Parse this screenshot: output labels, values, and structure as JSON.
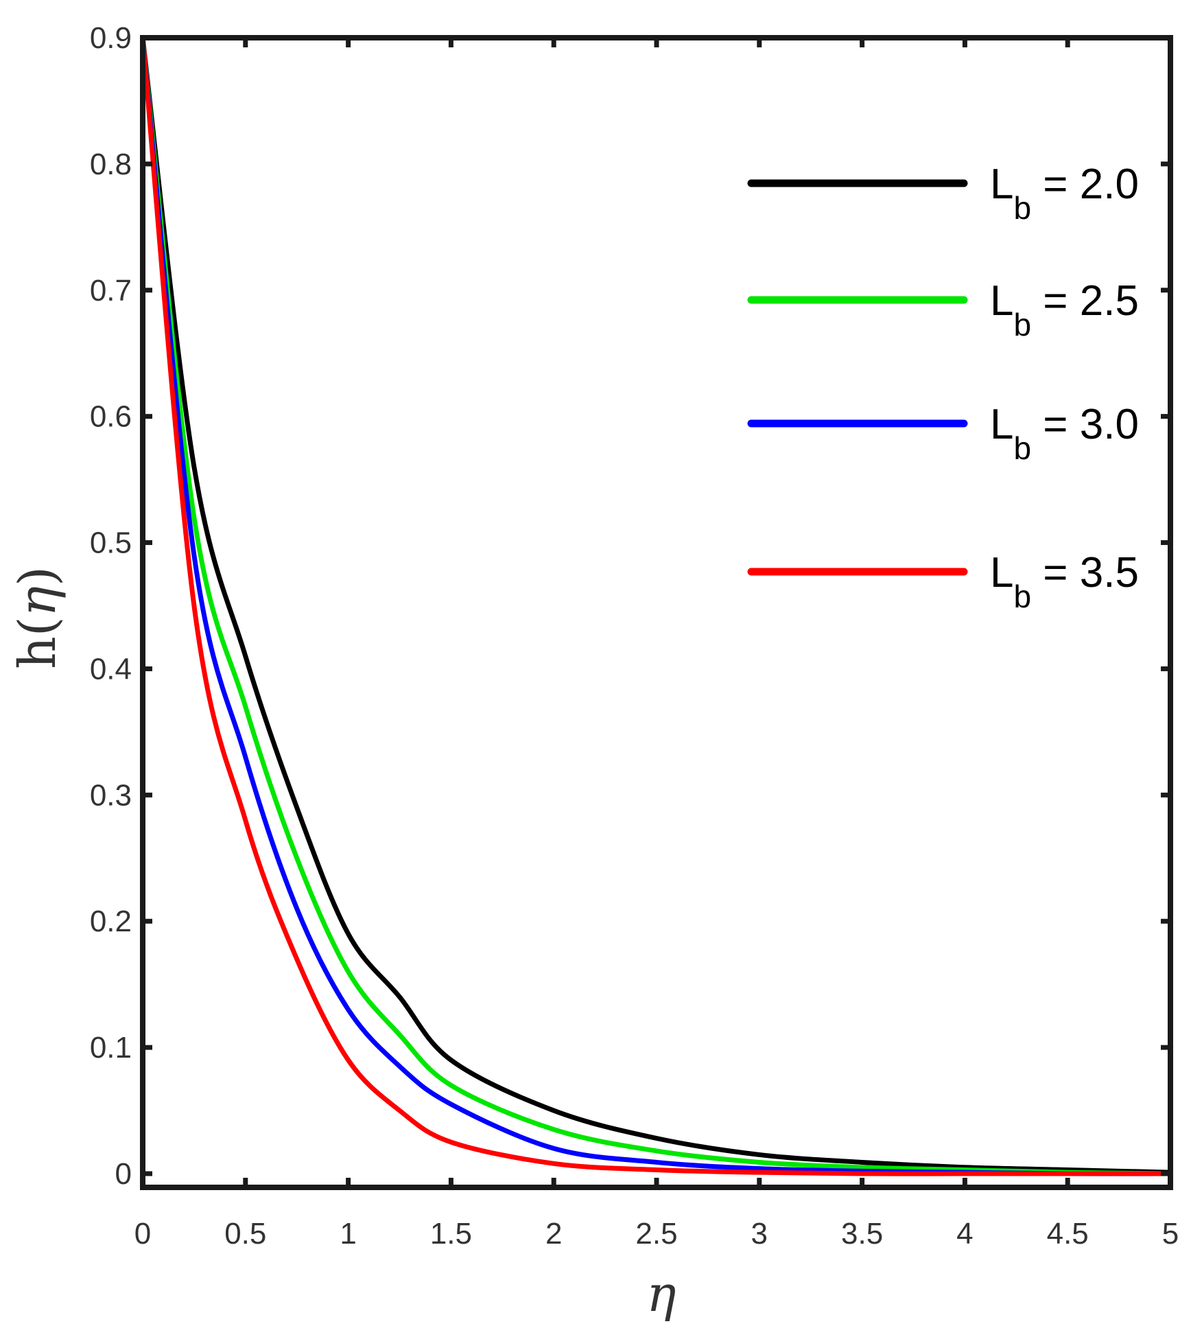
{
  "chart_data": {
    "type": "line",
    "xlabel": "η",
    "ylabel_prefix": "h(",
    "ylabel_var": "η",
    "ylabel_suffix": ")",
    "xlim": [
      0,
      5
    ],
    "ylim": [
      0,
      0.9
    ],
    "x_ticks": [
      0,
      0.5,
      1,
      1.5,
      2,
      2.5,
      3,
      3.5,
      4,
      4.5,
      5
    ],
    "x_tick_labels": [
      "0",
      "0.5",
      "1",
      "1.5",
      "2",
      "2.5",
      "3",
      "3.5",
      "4",
      "4.5",
      "5"
    ],
    "y_ticks": [
      0,
      0.1,
      0.2,
      0.3,
      0.4,
      0.5,
      0.6,
      0.7,
      0.8,
      0.9
    ],
    "y_tick_labels": [
      "0",
      "0.1",
      "0.2",
      "0.3",
      "0.4",
      "0.5",
      "0.6",
      "0.7",
      "0.8",
      "0.9"
    ],
    "grid": false,
    "legend_position": "top-right",
    "series": [
      {
        "name": "Lb = 2.0",
        "label_main": "L",
        "label_sub": "b",
        "label_rest": " = 2.0",
        "color": "#000000",
        "x": [
          0,
          0.25,
          0.5,
          0.75,
          1,
          1.25,
          1.5,
          2,
          2.5,
          3,
          3.5,
          4,
          4.5,
          5
        ],
        "y": [
          0.9,
          0.56,
          0.41,
          0.29,
          0.19,
          0.14,
          0.09,
          0.05,
          0.028,
          0.015,
          0.009,
          0.005,
          0.003,
          0.001
        ]
      },
      {
        "name": "Lb = 2.5",
        "label_main": "L",
        "label_sub": "b",
        "label_rest": " = 2.5",
        "color": "#00e600",
        "x": [
          0,
          0.25,
          0.5,
          0.75,
          1,
          1.25,
          1.5,
          2,
          2.5,
          3,
          3.5,
          4,
          4.5,
          5
        ],
        "y": [
          0.9,
          0.52,
          0.37,
          0.25,
          0.16,
          0.11,
          0.07,
          0.035,
          0.018,
          0.009,
          0.005,
          0.003,
          0.001,
          0.0
        ]
      },
      {
        "name": "Lb = 3.0",
        "label_main": "L",
        "label_sub": "b",
        "label_rest": " = 3.0",
        "color": "#0000ff",
        "x": [
          0,
          0.25,
          0.5,
          0.75,
          1,
          1.25,
          1.5,
          2,
          2.5,
          3,
          3.5,
          4,
          4.5,
          5
        ],
        "y": [
          0.9,
          0.49,
          0.33,
          0.21,
          0.13,
          0.085,
          0.055,
          0.02,
          0.009,
          0.004,
          0.002,
          0.001,
          0.0,
          0.0
        ]
      },
      {
        "name": "Lb = 3.5",
        "label_main": "L",
        "label_sub": "b",
        "label_rest": " = 3.5",
        "color": "#ff0000",
        "x": [
          0,
          0.25,
          0.5,
          0.75,
          1,
          1.25,
          1.5,
          2,
          2.5,
          3,
          3.5,
          4,
          4.5,
          5
        ],
        "y": [
          0.9,
          0.45,
          0.28,
          0.17,
          0.09,
          0.05,
          0.025,
          0.008,
          0.003,
          0.001,
          0.0,
          0.0,
          0.0,
          0.0
        ]
      }
    ]
  }
}
